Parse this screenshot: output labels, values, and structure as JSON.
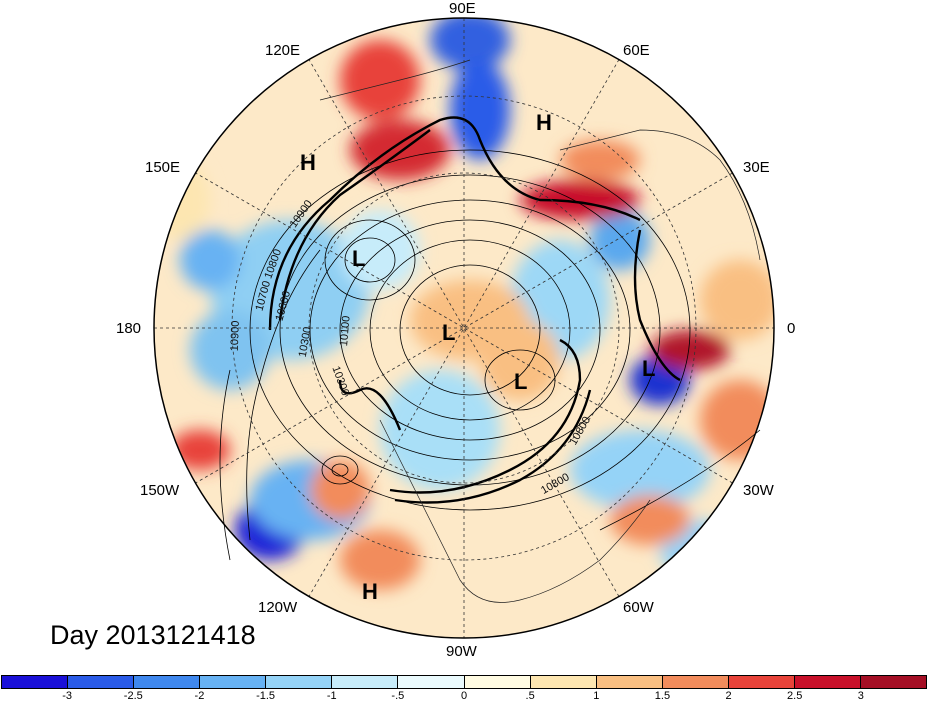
{
  "map": {
    "projection": "north-polar-stereographic",
    "title": "Day 2013121418",
    "longitude_labels": [
      "90E",
      "60E",
      "30E",
      "0",
      "30W",
      "60W",
      "90W",
      "120W",
      "150W",
      "180",
      "150E",
      "120E"
    ],
    "pressure_centers": [
      {
        "type": "H",
        "text": "H"
      },
      {
        "type": "H",
        "text": "H"
      },
      {
        "type": "H",
        "text": "H"
      },
      {
        "type": "L",
        "text": "L"
      },
      {
        "type": "L",
        "text": "L"
      },
      {
        "type": "L",
        "text": "L"
      },
      {
        "type": "L",
        "text": "L"
      }
    ],
    "contour_labels": [
      "10900",
      "10800",
      "10300",
      "10100",
      "10900",
      "10800",
      "10800",
      "10300",
      "10700",
      "10600"
    ]
  },
  "colorbar": {
    "ticks": [
      "-3",
      "-2.5",
      "-2",
      "-1.5",
      "-1",
      "-.5",
      "0",
      ".5",
      "1",
      "1.5",
      "2",
      "2.5",
      "3"
    ],
    "colors": [
      "#1a10d8",
      "#2a5be8",
      "#3f88ee",
      "#67b2f3",
      "#95d3f7",
      "#c7ecfa",
      "#eafafd",
      "#fffbe2",
      "#fde6b1",
      "#f9bf82",
      "#f28c5c",
      "#e8433a",
      "#c8102a",
      "#a50f25"
    ]
  }
}
